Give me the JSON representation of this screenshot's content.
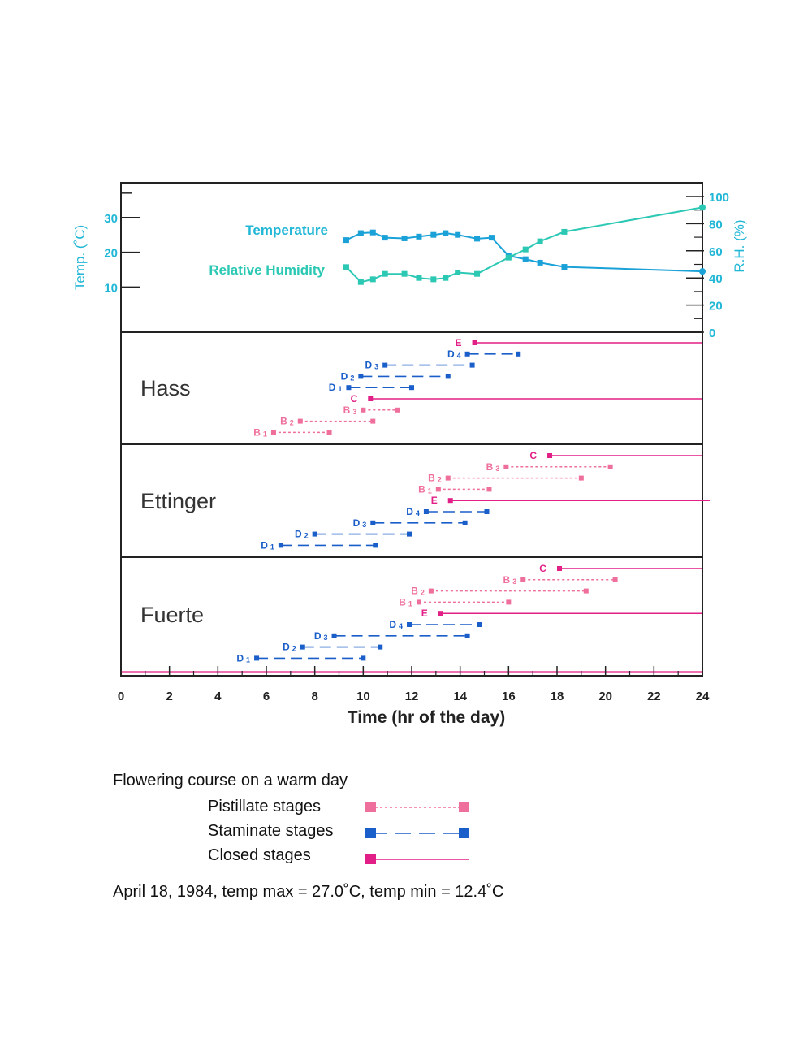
{
  "colors": {
    "temperature": "#1aa2d8",
    "humidity": "#2bc8b4",
    "axis_text": "#21b7d6",
    "pistillate": "#ef6f9c",
    "staminate": "#1a5ec9",
    "closed": "#e21f86",
    "frame": "#222222"
  },
  "chart_data": {
    "climate": {
      "type": "line",
      "left_axis_label": "Temp. (˚C)",
      "right_axis_label": "R.H. (%)",
      "left_ticks": [
        "10",
        "20",
        "30"
      ],
      "right_ticks": [
        "0",
        "20",
        "40",
        "60",
        "80",
        "100"
      ],
      "left_range": [
        -3,
        40
      ],
      "right_range": [
        0,
        100
      ],
      "series": [
        {
          "name": "Temperature",
          "axis": "left",
          "points": [
            [
              9.3,
              23.5
            ],
            [
              9.9,
              25.5
            ],
            [
              10.4,
              25.7
            ],
            [
              10.9,
              24.2
            ],
            [
              11.7,
              24.0
            ],
            [
              12.3,
              24.5
            ],
            [
              12.9,
              25.0
            ],
            [
              13.4,
              25.5
            ],
            [
              13.9,
              25.0
            ],
            [
              14.7,
              23.9
            ],
            [
              15.3,
              24.2
            ],
            [
              16.0,
              19.0
            ],
            [
              16.7,
              18.0
            ],
            [
              17.3,
              17.0
            ],
            [
              18.3,
              15.8
            ],
            [
              24.0,
              14.5
            ]
          ]
        },
        {
          "name": "Relative Humidity",
          "axis": "right",
          "points": [
            [
              9.3,
              48
            ],
            [
              9.9,
              37
            ],
            [
              10.4,
              39
            ],
            [
              10.9,
              43
            ],
            [
              11.7,
              43
            ],
            [
              12.3,
              40
            ],
            [
              12.9,
              39
            ],
            [
              13.4,
              40
            ],
            [
              13.9,
              44
            ],
            [
              14.7,
              43
            ],
            [
              16.0,
              55
            ],
            [
              16.7,
              61
            ],
            [
              17.3,
              67
            ],
            [
              18.3,
              74
            ],
            [
              24.0,
              92
            ]
          ]
        }
      ]
    },
    "x_axis": {
      "label": "Time (hr of the day)",
      "ticks": [
        "0",
        "2",
        "4",
        "6",
        "8",
        "10",
        "12",
        "14",
        "16",
        "18",
        "20",
        "22",
        "24"
      ],
      "range": [
        0,
        24
      ]
    },
    "cultivars": [
      {
        "name": "Hass",
        "stages": [
          {
            "label": "E",
            "sub": "",
            "type": "closed",
            "start": 14.6,
            "end": 24.0,
            "row": 1
          },
          {
            "label": "D",
            "sub": "4",
            "type": "staminate",
            "start": 14.3,
            "end": 16.4,
            "row": 2
          },
          {
            "label": "D",
            "sub": "3",
            "type": "staminate",
            "start": 10.9,
            "end": 14.5,
            "row": 3
          },
          {
            "label": "D",
            "sub": "2",
            "type": "staminate",
            "start": 9.9,
            "end": 13.5,
            "row": 4
          },
          {
            "label": "D",
            "sub": "1",
            "type": "staminate",
            "start": 9.4,
            "end": 12.0,
            "row": 5
          },
          {
            "label": "C",
            "sub": "",
            "type": "closed",
            "start": 10.3,
            "end": 24.0,
            "row": 6
          },
          {
            "label": "B",
            "sub": "3",
            "type": "pistillate",
            "start": 10.0,
            "end": 11.4,
            "row": 7
          },
          {
            "label": "B",
            "sub": "2",
            "type": "pistillate",
            "start": 7.4,
            "end": 10.4,
            "row": 8
          },
          {
            "label": "B",
            "sub": "1",
            "type": "pistillate",
            "start": 6.3,
            "end": 8.6,
            "row": 9
          }
        ]
      },
      {
        "name": "Ettinger",
        "stages": [
          {
            "label": "C",
            "sub": "",
            "type": "closed",
            "start": 17.7,
            "end": 24.0,
            "row": 1
          },
          {
            "label": "B",
            "sub": "3",
            "type": "pistillate",
            "start": 15.9,
            "end": 20.2,
            "row": 2
          },
          {
            "label": "B",
            "sub": "2",
            "type": "pistillate",
            "start": 13.5,
            "end": 19.0,
            "row": 3
          },
          {
            "label": "B",
            "sub": "1",
            "type": "pistillate",
            "start": 13.1,
            "end": 15.2,
            "row": 4
          },
          {
            "label": "E",
            "sub": "",
            "type": "closed",
            "start": 13.6,
            "end": 24.3,
            "row": 5
          },
          {
            "label": "D",
            "sub": "4",
            "type": "staminate",
            "start": 12.6,
            "end": 15.1,
            "row": 6
          },
          {
            "label": "D",
            "sub": "3",
            "type": "staminate",
            "start": 10.4,
            "end": 14.2,
            "row": 7
          },
          {
            "label": "D",
            "sub": "2",
            "type": "staminate",
            "start": 8.0,
            "end": 11.9,
            "row": 8
          },
          {
            "label": "D",
            "sub": "1",
            "type": "staminate",
            "start": 6.6,
            "end": 10.5,
            "row": 9
          }
        ]
      },
      {
        "name": "Fuerte",
        "stages": [
          {
            "label": "C",
            "sub": "",
            "type": "closed",
            "start": 18.1,
            "end": 24.0,
            "row": 1
          },
          {
            "label": "B",
            "sub": "3",
            "type": "pistillate",
            "start": 16.6,
            "end": 20.4,
            "row": 2
          },
          {
            "label": "B",
            "sub": "2",
            "type": "pistillate",
            "start": 12.8,
            "end": 19.2,
            "row": 3
          },
          {
            "label": "B",
            "sub": "1",
            "type": "pistillate",
            "start": 12.3,
            "end": 16.0,
            "row": 4
          },
          {
            "label": "E",
            "sub": "",
            "type": "closed",
            "start": 13.2,
            "end": 24.0,
            "row": 5
          },
          {
            "label": "D",
            "sub": "4",
            "type": "staminate",
            "start": 11.9,
            "end": 14.8,
            "row": 6
          },
          {
            "label": "D",
            "sub": "3",
            "type": "staminate",
            "start": 8.8,
            "end": 14.3,
            "row": 7
          },
          {
            "label": "D",
            "sub": "2",
            "type": "staminate",
            "start": 7.5,
            "end": 10.7,
            "row": 8
          },
          {
            "label": "D",
            "sub": "1",
            "type": "staminate",
            "start": 5.6,
            "end": 10.0,
            "row": 9
          }
        ]
      }
    ]
  },
  "caption": {
    "title": "Flowering course on a warm day",
    "legend": [
      {
        "label": "Pistillate stages",
        "type": "pistillate"
      },
      {
        "label": "Staminate stages",
        "type": "staminate"
      },
      {
        "label": "Closed stages",
        "type": "closed"
      }
    ],
    "footer": "April 18, 1984, temp max = 27.0˚C, temp min = 12.4˚C"
  }
}
